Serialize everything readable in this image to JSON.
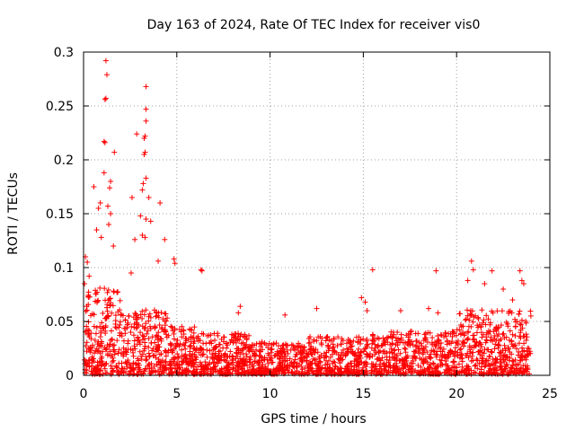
{
  "chart_data": {
    "type": "scatter",
    "title": "Day 163 of 2024, Rate Of TEC Index for receiver vis0",
    "xlabel": "GPS time / hours",
    "ylabel": "ROTI / TECUs",
    "xlim": [
      0,
      25
    ],
    "ylim": [
      0,
      0.3
    ],
    "x_ticks": [
      0,
      5,
      10,
      15,
      20,
      25
    ],
    "x_tick_labels": [
      "0",
      "5",
      "10",
      "15",
      "20",
      "25"
    ],
    "y_ticks": [
      0,
      0.05,
      0.1,
      0.15,
      0.2,
      0.25,
      0.3
    ],
    "y_tick_labels": [
      "0",
      "0.05",
      "0.1",
      "0.15",
      "0.2",
      "0.25",
      "0.3"
    ],
    "grid": true,
    "legend": "none",
    "marker": "plus",
    "color": "#ff0000",
    "series": [
      {
        "name": "ROTI",
        "points": [
          [
            1.2,
            0.292
          ],
          [
            1.25,
            0.279
          ],
          [
            1.2,
            0.257
          ],
          [
            1.15,
            0.256
          ],
          [
            3.35,
            0.268
          ],
          [
            3.35,
            0.247
          ],
          [
            3.35,
            0.236
          ],
          [
            3.3,
            0.222
          ],
          [
            3.25,
            0.22
          ],
          [
            2.85,
            0.224
          ],
          [
            3.3,
            0.207
          ],
          [
            3.25,
            0.205
          ],
          [
            1.1,
            0.217
          ],
          [
            1.15,
            0.216
          ],
          [
            1.65,
            0.207
          ],
          [
            1.1,
            0.188
          ],
          [
            1.45,
            0.18
          ],
          [
            1.4,
            0.174
          ],
          [
            0.55,
            0.175
          ],
          [
            3.35,
            0.183
          ],
          [
            3.2,
            0.178
          ],
          [
            3.15,
            0.172
          ],
          [
            2.6,
            0.165
          ],
          [
            3.5,
            0.165
          ],
          [
            4.1,
            0.16
          ],
          [
            0.9,
            0.16
          ],
          [
            0.8,
            0.155
          ],
          [
            1.3,
            0.157
          ],
          [
            1.45,
            0.15
          ],
          [
            3.05,
            0.148
          ],
          [
            3.35,
            0.145
          ],
          [
            3.6,
            0.143
          ],
          [
            3.15,
            0.13
          ],
          [
            3.3,
            0.128
          ],
          [
            2.75,
            0.126
          ],
          [
            4.35,
            0.126
          ],
          [
            0.7,
            0.135
          ],
          [
            0.95,
            0.128
          ],
          [
            1.35,
            0.14
          ],
          [
            1.6,
            0.12
          ],
          [
            6.3,
            0.098
          ],
          [
            6.35,
            0.097
          ],
          [
            15.5,
            0.098
          ],
          [
            18.9,
            0.097
          ],
          [
            20.8,
            0.106
          ],
          [
            20.9,
            0.098
          ],
          [
            21.9,
            0.097
          ],
          [
            23.4,
            0.097
          ],
          [
            4.85,
            0.108
          ],
          [
            4.9,
            0.104
          ],
          [
            4.0,
            0.106
          ],
          [
            0.1,
            0.11
          ],
          [
            0.2,
            0.105
          ],
          [
            2.55,
            0.095
          ],
          [
            0.05,
            0.085
          ],
          [
            0.3,
            0.092
          ],
          [
            14.9,
            0.072
          ],
          [
            15.1,
            0.068
          ],
          [
            15.2,
            0.06
          ],
          [
            12.5,
            0.062
          ],
          [
            8.4,
            0.064
          ],
          [
            8.3,
            0.058
          ],
          [
            10.8,
            0.056
          ],
          [
            17.0,
            0.06
          ],
          [
            18.5,
            0.062
          ],
          [
            19.0,
            0.058
          ],
          [
            22.5,
            0.08
          ],
          [
            23.0,
            0.07
          ],
          [
            23.5,
            0.088
          ],
          [
            23.6,
            0.085
          ],
          [
            21.5,
            0.085
          ],
          [
            20.6,
            0.088
          ]
        ]
      }
    ]
  }
}
